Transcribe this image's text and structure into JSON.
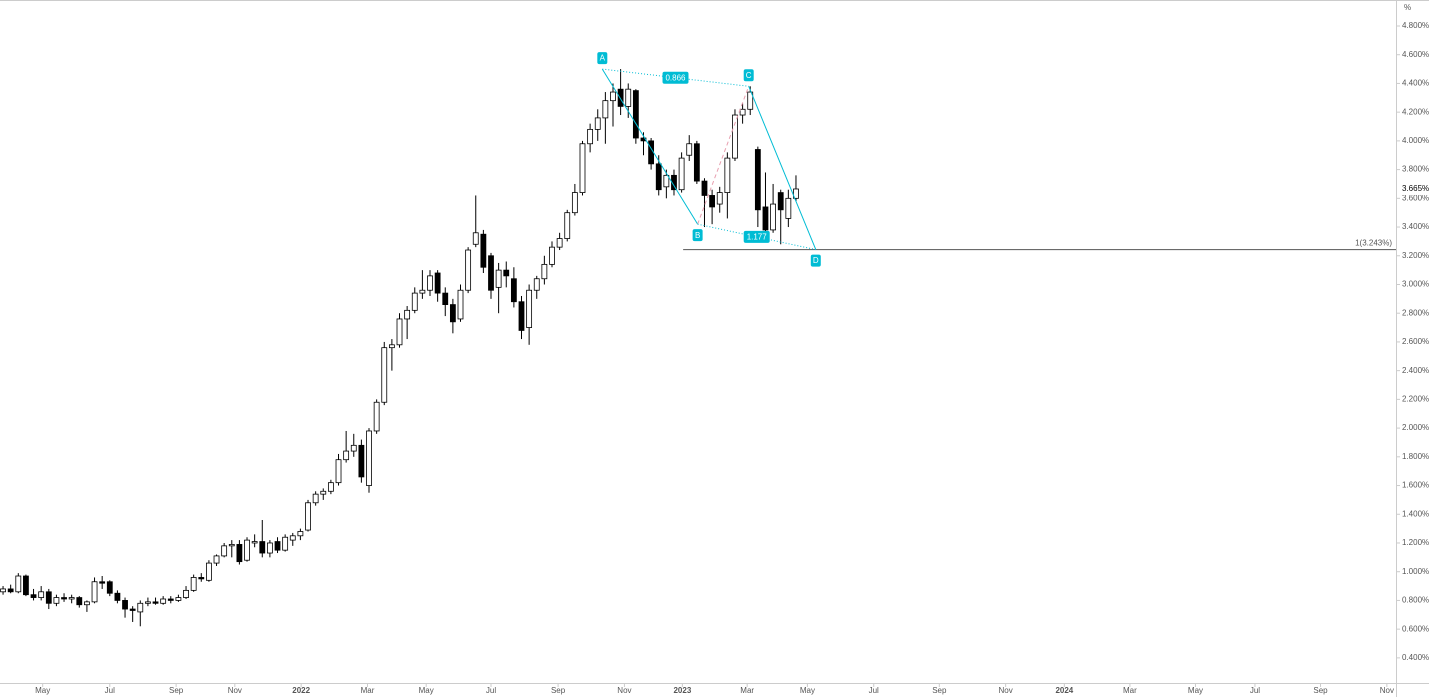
{
  "chart_data": {
    "type": "candlestick",
    "open": [
      0.86,
      0.88,
      0.86,
      0.97,
      0.84,
      0.82,
      0.86,
      0.78,
      0.82,
      0.81,
      0.82,
      0.77,
      0.79,
      0.93,
      0.93,
      0.85,
      0.8,
      0.74,
      0.72,
      0.78,
      0.79,
      0.78,
      0.81,
      0.8,
      0.82,
      0.87,
      0.96,
      0.94,
      1.06,
      1.11,
      1.18,
      1.19,
      1.08,
      1.2,
      1.21,
      1.13,
      1.21,
      1.15,
      1.22,
      1.25,
      1.29,
      1.48,
      1.54,
      1.56,
      1.62,
      1.78,
      1.84,
      1.88,
      1.6,
      1.98,
      2.18,
      2.56,
      2.58,
      2.76,
      2.82,
      2.94,
      2.96,
      3.08,
      2.94,
      2.86,
      2.76,
      2.96,
      3.28,
      3.35,
      3.2,
      2.98,
      3.1,
      3.04,
      2.88,
      2.7,
      2.96,
      3.04,
      3.14,
      3.26,
      3.32,
      3.5,
      3.64,
      3.98,
      4.08,
      4.16,
      4.28,
      4.36,
      4.24,
      4.35,
      4.02,
      4.0,
      3.84,
      3.68,
      3.76,
      3.66,
      3.9,
      3.98,
      3.72,
      3.62,
      3.56,
      3.64,
      3.88,
      4.18,
      4.22,
      3.94,
      3.54,
      3.38,
      3.64,
      3.46,
      3.6
    ],
    "high": [
      0.9,
      0.91,
      0.99,
      0.98,
      0.88,
      0.9,
      0.88,
      0.84,
      0.85,
      0.84,
      0.83,
      0.8,
      0.96,
      0.97,
      0.94,
      0.87,
      0.82,
      0.76,
      0.8,
      0.82,
      0.82,
      0.83,
      0.83,
      0.84,
      0.9,
      0.98,
      0.99,
      1.08,
      1.12,
      1.2,
      1.22,
      1.22,
      1.24,
      1.26,
      1.36,
      1.22,
      1.24,
      1.26,
      1.27,
      1.3,
      1.5,
      1.56,
      1.58,
      1.64,
      1.82,
      1.98,
      1.96,
      1.92,
      2.0,
      2.2,
      2.6,
      2.62,
      2.8,
      2.85,
      2.98,
      3.1,
      3.1,
      3.1,
      2.98,
      2.9,
      3.0,
      3.26,
      3.62,
      3.38,
      3.22,
      3.15,
      3.16,
      3.12,
      2.92,
      3.0,
      3.06,
      3.2,
      3.3,
      3.36,
      3.52,
      3.7,
      4.0,
      4.12,
      4.22,
      4.34,
      4.4,
      4.5,
      4.4,
      4.36,
      4.06,
      4.02,
      3.9,
      3.8,
      3.8,
      3.92,
      4.04,
      4.0,
      3.74,
      3.66,
      3.68,
      3.92,
      4.22,
      4.26,
      4.38,
      3.96,
      3.78,
      3.7,
      3.66,
      3.66,
      3.76
    ],
    "low": [
      0.84,
      0.85,
      0.85,
      0.83,
      0.8,
      0.8,
      0.74,
      0.76,
      0.79,
      0.78,
      0.75,
      0.72,
      0.78,
      0.88,
      0.83,
      0.78,
      0.68,
      0.65,
      0.62,
      0.76,
      0.77,
      0.77,
      0.78,
      0.79,
      0.81,
      0.86,
      0.93,
      0.93,
      1.04,
      1.1,
      1.1,
      1.05,
      1.07,
      1.17,
      1.1,
      1.1,
      1.13,
      1.14,
      1.18,
      1.22,
      1.28,
      1.46,
      1.5,
      1.54,
      1.6,
      1.76,
      1.8,
      1.62,
      1.55,
      1.96,
      2.16,
      2.4,
      2.56,
      2.62,
      2.8,
      2.9,
      2.92,
      2.88,
      2.78,
      2.66,
      2.74,
      2.94,
      3.26,
      3.08,
      2.9,
      2.8,
      2.98,
      2.84,
      2.62,
      2.58,
      2.9,
      3.0,
      3.12,
      3.24,
      3.3,
      3.48,
      3.62,
      3.92,
      4.0,
      3.98,
      4.1,
      4.18,
      4.16,
      3.98,
      3.9,
      3.8,
      3.62,
      3.6,
      3.62,
      3.64,
      3.86,
      3.7,
      3.4,
      3.42,
      3.5,
      3.46,
      3.86,
      4.12,
      4.18,
      3.4,
      3.36,
      3.36,
      3.28,
      3.4,
      3.58
    ],
    "close": [
      0.88,
      0.86,
      0.97,
      0.84,
      0.82,
      0.86,
      0.78,
      0.82,
      0.81,
      0.82,
      0.77,
      0.79,
      0.93,
      0.92,
      0.85,
      0.8,
      0.74,
      0.73,
      0.78,
      0.79,
      0.78,
      0.81,
      0.8,
      0.82,
      0.87,
      0.96,
      0.95,
      1.06,
      1.11,
      1.18,
      1.19,
      1.07,
      1.22,
      1.21,
      1.13,
      1.2,
      1.15,
      1.24,
      1.25,
      1.28,
      1.48,
      1.54,
      1.56,
      1.62,
      1.78,
      1.84,
      1.88,
      1.66,
      1.98,
      2.18,
      2.56,
      2.58,
      2.76,
      2.82,
      2.94,
      2.96,
      3.06,
      2.94,
      2.86,
      2.74,
      2.96,
      3.24,
      3.36,
      3.12,
      2.96,
      3.1,
      3.06,
      2.88,
      2.68,
      2.96,
      3.04,
      3.14,
      3.26,
      3.32,
      3.5,
      3.64,
      3.98,
      4.08,
      4.16,
      4.28,
      4.34,
      4.24,
      4.36,
      4.02,
      4.0,
      3.84,
      3.66,
      3.76,
      3.66,
      3.88,
      3.98,
      3.72,
      3.62,
      3.54,
      3.64,
      3.88,
      4.18,
      4.22,
      4.34,
      3.52,
      3.38,
      3.56,
      3.52,
      3.6,
      3.665
    ],
    "up_color": "#ffffff",
    "down_color": "#000000",
    "pattern_color": "#00bcd4",
    "xlim": [
      -0.4,
      182.7
    ],
    "ylim": [
      0.225,
      4.981
    ],
    "xticks": [
      {
        "value": 5.2,
        "label": "May"
      },
      {
        "value": 14.0,
        "label": "Jul"
      },
      {
        "value": 22.7,
        "label": "Sep"
      },
      {
        "value": 30.4,
        "label": "Nov"
      },
      {
        "value": 39.1,
        "label": "2022"
      },
      {
        "value": 47.8,
        "label": "Mar"
      },
      {
        "value": 55.5,
        "label": "May"
      },
      {
        "value": 64.0,
        "label": "Jul"
      },
      {
        "value": 72.8,
        "label": "Sep"
      },
      {
        "value": 81.5,
        "label": "Nov"
      },
      {
        "value": 89.1,
        "label": "2023"
      },
      {
        "value": 97.6,
        "label": "Mar"
      },
      {
        "value": 105.5,
        "label": "May"
      },
      {
        "value": 114.2,
        "label": "Jul"
      },
      {
        "value": 122.8,
        "label": "Sep"
      },
      {
        "value": 131.5,
        "label": "Nov"
      },
      {
        "value": 139.2,
        "label": "2024"
      },
      {
        "value": 147.8,
        "label": "Mar"
      },
      {
        "value": 156.4,
        "label": "May"
      },
      {
        "value": 164.2,
        "label": "Jul"
      },
      {
        "value": 172.8,
        "label": "Sep"
      },
      {
        "value": 181.5,
        "label": "Nov"
      }
    ],
    "yticks": [
      {
        "value": 0.4,
        "label": "0.400%"
      },
      {
        "value": 0.6,
        "label": "0.600%"
      },
      {
        "value": 0.8,
        "label": "0.800%"
      },
      {
        "value": 1.0,
        "label": "1.000%"
      },
      {
        "value": 1.2,
        "label": "1.200%"
      },
      {
        "value": 1.4,
        "label": "1.400%"
      },
      {
        "value": 1.6,
        "label": "1.600%"
      },
      {
        "value": 1.8,
        "label": "1.800%"
      },
      {
        "value": 2.0,
        "label": "2.000%"
      },
      {
        "value": 2.2,
        "label": "2.200%"
      },
      {
        "value": 2.4,
        "label": "2.400%"
      },
      {
        "value": 2.6,
        "label": "2.600%"
      },
      {
        "value": 2.8,
        "label": "2.800%"
      },
      {
        "value": 3.0,
        "label": "3.000%"
      },
      {
        "value": 3.2,
        "label": "3.200%"
      },
      {
        "value": 3.4,
        "label": "3.400%"
      },
      {
        "value": 3.6,
        "label": "3.600%"
      },
      {
        "value": 3.8,
        "label": "3.800%"
      },
      {
        "value": 4.0,
        "label": "4.000%"
      },
      {
        "value": 4.2,
        "label": "4.200%"
      },
      {
        "value": 4.4,
        "label": "4.400%"
      },
      {
        "value": 4.6,
        "label": "4.600%"
      },
      {
        "value": 4.8,
        "label": "4.800%"
      }
    ],
    "y_unit": "%",
    "last_price": {
      "value": 3.665,
      "label": "3.665%"
    },
    "pattern_points": [
      {
        "label": "A",
        "x": 78.6,
        "y": 4.5
      },
      {
        "label": "B",
        "x": 91.1,
        "y": 3.42
      },
      {
        "label": "C",
        "x": 97.8,
        "y": 4.38
      },
      {
        "label": "D",
        "x": 106.6,
        "y": 3.243
      }
    ],
    "ratio_labels": [
      "0.866",
      "1.177"
    ],
    "level": {
      "value": 3.243,
      "label": "1(3.243%)",
      "start_x": 89.2
    },
    "grid": false
  }
}
